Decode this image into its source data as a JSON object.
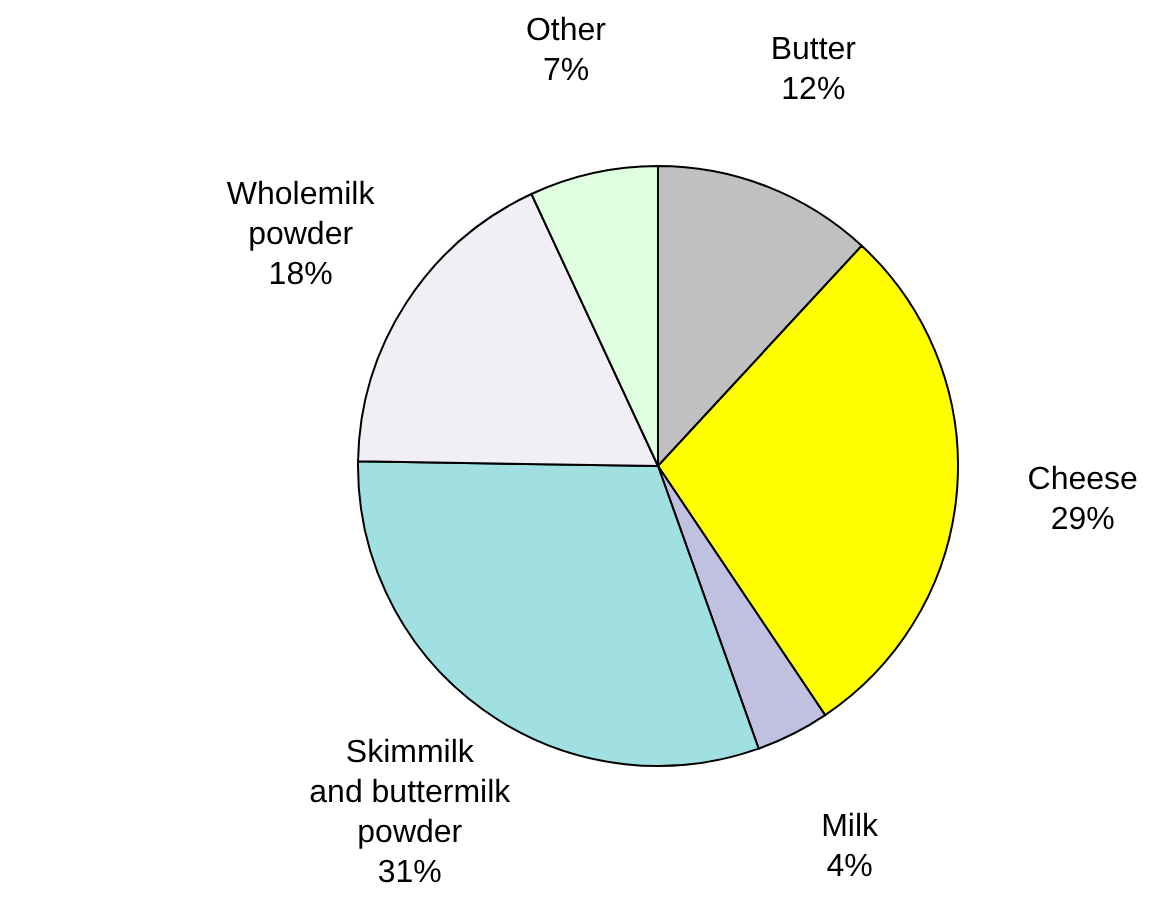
{
  "chart_data": {
    "type": "pie",
    "categories": [
      "Butter",
      "Cheese",
      "Milk",
      "Skimmilk\nand buttermilk\npowder",
      "Wholemilk\npowder",
      "Other"
    ],
    "values": [
      12,
      29,
      4,
      31,
      18,
      7
    ],
    "colors": [
      "#c0c0c0",
      "#ffff00",
      "#c0c0e0",
      "#a0e0e0",
      "#f2eef6",
      "#e0ffe0"
    ],
    "value_labels": [
      "12%",
      "29%",
      "4%",
      "31%",
      "18%",
      "7%"
    ]
  }
}
